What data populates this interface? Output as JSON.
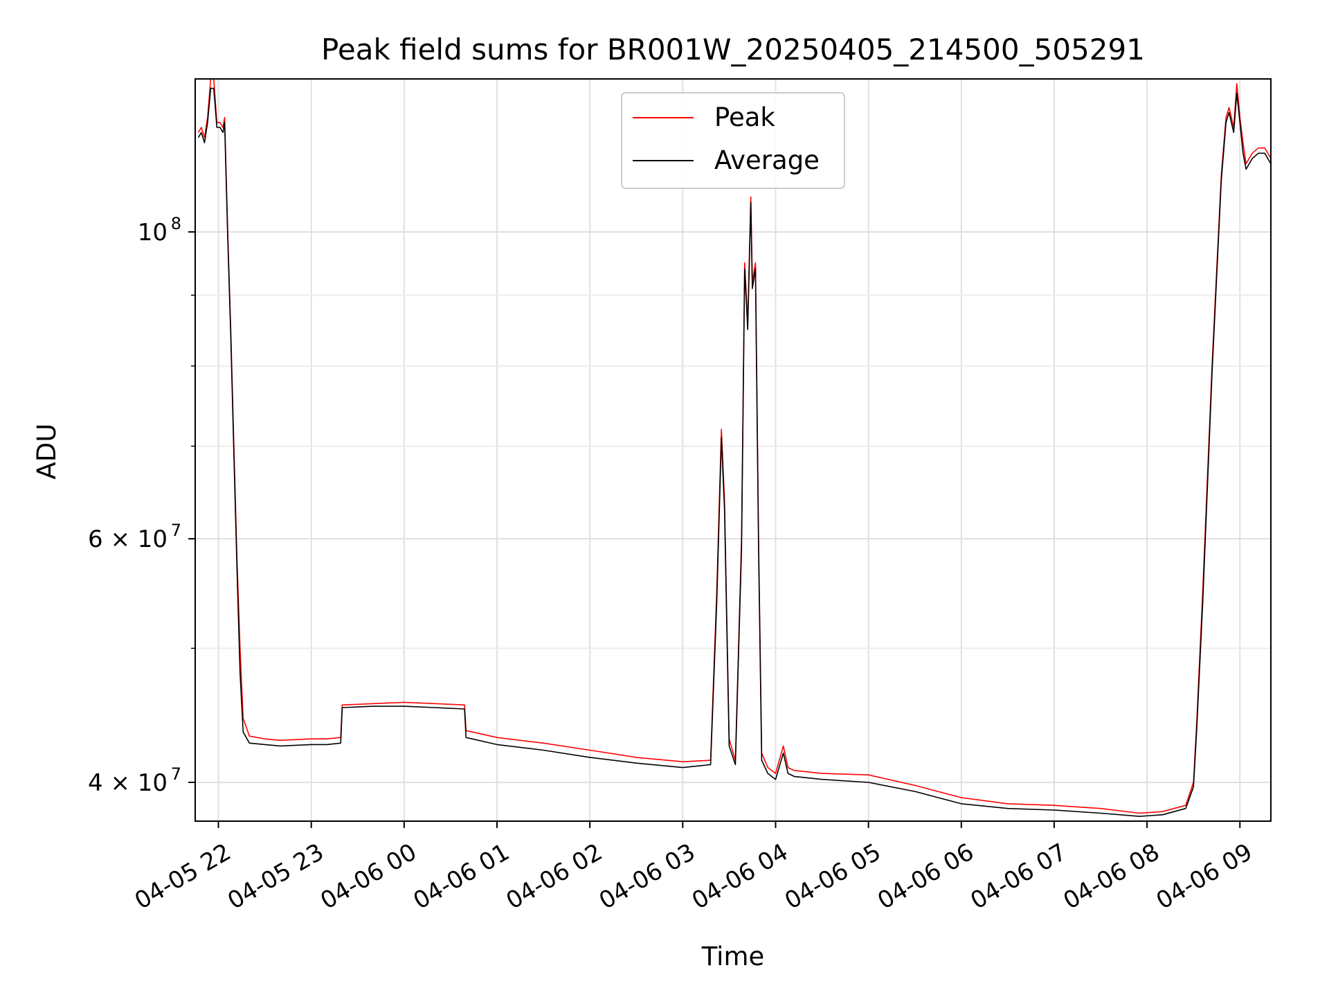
{
  "chart_data": {
    "type": "line",
    "title": "Peak field sums for BR001W_20250405_214500_505291",
    "xlabel": "Time",
    "ylabel": "ADU",
    "y_scale": "log",
    "ylim": [
      37500000,
      129000000
    ],
    "xlim": [
      "2025-04-05 21:45",
      "2025-04-06 09:20"
    ],
    "grid": true,
    "legend_position": "top-center",
    "x_ticks": [
      "04-05 22",
      "04-05 23",
      "04-06 00",
      "04-06 01",
      "04-06 02",
      "04-06 03",
      "04-06 04",
      "04-06 05",
      "04-06 06",
      "04-06 07",
      "04-06 08",
      "04-06 09"
    ],
    "y_ticks": [
      {
        "value": 100000000,
        "base": "10",
        "exp": "8"
      },
      {
        "value": 60000000,
        "base": "6 × 10",
        "exp": "7"
      },
      {
        "value": 40000000,
        "base": "4 × 10",
        "exp": "7"
      }
    ],
    "series": [
      {
        "name": "Peak",
        "color": "#ff0000",
        "x": [
          "2025-04-05 21:47",
          "2025-04-05 21:49",
          "2025-04-05 21:51",
          "2025-04-05 21:53",
          "2025-04-05 21:55",
          "2025-04-05 21:57",
          "2025-04-05 21:59",
          "2025-04-05 22:01",
          "2025-04-05 22:03",
          "2025-04-05 22:04",
          "2025-04-05 22:06",
          "2025-04-05 22:08",
          "2025-04-05 22:10",
          "2025-04-05 22:12",
          "2025-04-05 22:14",
          "2025-04-05 22:16",
          "2025-04-05 22:20",
          "2025-04-05 22:30",
          "2025-04-05 22:40",
          "2025-04-05 23:00",
          "2025-04-05 23:10",
          "2025-04-05 23:19",
          "2025-04-05 23:20",
          "2025-04-05 23:40",
          "2025-04-06 00:00",
          "2025-04-06 00:20",
          "2025-04-06 00:39",
          "2025-04-06 00:40",
          "2025-04-06 01:00",
          "2025-04-06 01:30",
          "2025-04-06 02:00",
          "2025-04-06 02:30",
          "2025-04-06 03:00",
          "2025-04-06 03:18",
          "2025-04-06 03:22",
          "2025-04-06 03:25",
          "2025-04-06 03:27",
          "2025-04-06 03:30",
          "2025-04-06 03:34",
          "2025-04-06 03:38",
          "2025-04-06 03:40",
          "2025-04-06 03:42",
          "2025-04-06 03:44",
          "2025-04-06 03:45",
          "2025-04-06 03:47",
          "2025-04-06 03:49",
          "2025-04-06 03:51",
          "2025-04-06 03:55",
          "2025-04-06 04:00",
          "2025-04-06 04:05",
          "2025-04-06 04:08",
          "2025-04-06 04:12",
          "2025-04-06 04:30",
          "2025-04-06 05:00",
          "2025-04-06 05:30",
          "2025-04-06 06:00",
          "2025-04-06 06:30",
          "2025-04-06 07:00",
          "2025-04-06 07:30",
          "2025-04-06 07:55",
          "2025-04-06 08:10",
          "2025-04-06 08:25",
          "2025-04-06 08:30",
          "2025-04-06 08:32",
          "2025-04-06 08:36",
          "2025-04-06 08:42",
          "2025-04-06 08:48",
          "2025-04-06 08:51",
          "2025-04-06 08:53",
          "2025-04-06 08:56",
          "2025-04-06 08:58",
          "2025-04-06 09:00",
          "2025-04-06 09:02",
          "2025-04-06 09:04",
          "2025-04-06 09:06",
          "2025-04-06 09:08",
          "2025-04-06 09:12",
          "2025-04-06 09:16",
          "2025-04-06 09:20"
        ],
        "y": [
          118000000,
          119000000,
          117000000,
          121000000,
          129000000,
          129000000,
          120000000,
          120000000,
          119000000,
          121000000,
          100000000,
          85000000,
          70000000,
          58000000,
          50000000,
          44500000,
          43200000,
          43000000,
          42900000,
          43000000,
          43000000,
          43100000,
          45500000,
          45600000,
          45700000,
          45600000,
          45500000,
          43600000,
          43100000,
          42700000,
          42200000,
          41700000,
          41400000,
          41500000,
          55000000,
          72000000,
          64000000,
          43000000,
          41500000,
          60000000,
          95000000,
          86000000,
          106000000,
          92000000,
          95000000,
          60000000,
          42000000,
          41000000,
          40600000,
          42500000,
          41000000,
          40800000,
          40600000,
          40500000,
          39800000,
          39000000,
          38600000,
          38500000,
          38300000,
          38000000,
          38100000,
          38500000,
          40000000,
          44000000,
          55000000,
          80000000,
          110000000,
          121000000,
          123000000,
          119000000,
          128000000,
          121000000,
          116000000,
          112000000,
          113000000,
          114000000,
          115000000,
          115000000,
          113000000
        ]
      },
      {
        "name": "Average",
        "color": "#000000",
        "x": [
          "2025-04-05 21:47",
          "2025-04-05 21:49",
          "2025-04-05 21:51",
          "2025-04-05 21:53",
          "2025-04-05 21:55",
          "2025-04-05 21:57",
          "2025-04-05 21:59",
          "2025-04-05 22:01",
          "2025-04-05 22:03",
          "2025-04-05 22:04",
          "2025-04-05 22:06",
          "2025-04-05 22:08",
          "2025-04-05 22:10",
          "2025-04-05 22:12",
          "2025-04-05 22:14",
          "2025-04-05 22:16",
          "2025-04-05 22:20",
          "2025-04-05 22:30",
          "2025-04-05 22:40",
          "2025-04-05 23:00",
          "2025-04-05 23:10",
          "2025-04-05 23:19",
          "2025-04-05 23:20",
          "2025-04-05 23:40",
          "2025-04-06 00:00",
          "2025-04-06 00:20",
          "2025-04-06 00:39",
          "2025-04-06 00:40",
          "2025-04-06 01:00",
          "2025-04-06 01:30",
          "2025-04-06 02:00",
          "2025-04-06 02:30",
          "2025-04-06 03:00",
          "2025-04-06 03:18",
          "2025-04-06 03:22",
          "2025-04-06 03:25",
          "2025-04-06 03:27",
          "2025-04-06 03:30",
          "2025-04-06 03:34",
          "2025-04-06 03:38",
          "2025-04-06 03:40",
          "2025-04-06 03:42",
          "2025-04-06 03:44",
          "2025-04-06 03:45",
          "2025-04-06 03:47",
          "2025-04-06 03:49",
          "2025-04-06 03:51",
          "2025-04-06 03:55",
          "2025-04-06 04:00",
          "2025-04-06 04:05",
          "2025-04-06 04:08",
          "2025-04-06 04:12",
          "2025-04-06 04:30",
          "2025-04-06 05:00",
          "2025-04-06 05:30",
          "2025-04-06 06:00",
          "2025-04-06 06:30",
          "2025-04-06 07:00",
          "2025-04-06 07:30",
          "2025-04-06 07:55",
          "2025-04-06 08:10",
          "2025-04-06 08:25",
          "2025-04-06 08:30",
          "2025-04-06 08:32",
          "2025-04-06 08:36",
          "2025-04-06 08:42",
          "2025-04-06 08:48",
          "2025-04-06 08:51",
          "2025-04-06 08:53",
          "2025-04-06 08:56",
          "2025-04-06 08:58",
          "2025-04-06 09:00",
          "2025-04-06 09:02",
          "2025-04-06 09:04",
          "2025-04-06 09:06",
          "2025-04-06 09:08",
          "2025-04-06 09:12",
          "2025-04-06 09:16",
          "2025-04-06 09:20"
        ],
        "y": [
          117000000,
          118000000,
          116000000,
          120000000,
          127000000,
          127000000,
          119000000,
          119000000,
          118000000,
          120000000,
          99000000,
          84000000,
          69000000,
          57000000,
          48000000,
          43500000,
          42700000,
          42600000,
          42500000,
          42600000,
          42600000,
          42700000,
          45300000,
          45400000,
          45400000,
          45300000,
          45200000,
          43100000,
          42600000,
          42200000,
          41700000,
          41300000,
          41000000,
          41200000,
          54000000,
          71000000,
          63000000,
          42500000,
          41200000,
          59000000,
          94000000,
          85000000,
          105000000,
          91000000,
          94000000,
          59000000,
          41500000,
          40600000,
          40200000,
          42000000,
          40600000,
          40400000,
          40200000,
          40000000,
          39400000,
          38600000,
          38300000,
          38200000,
          38000000,
          37800000,
          37900000,
          38300000,
          39700000,
          43500000,
          54000000,
          79000000,
          109000000,
          120000000,
          122000000,
          118000000,
          126000000,
          120000000,
          114000000,
          111000000,
          112000000,
          113000000,
          114000000,
          114000000,
          112000000
        ]
      }
    ]
  }
}
